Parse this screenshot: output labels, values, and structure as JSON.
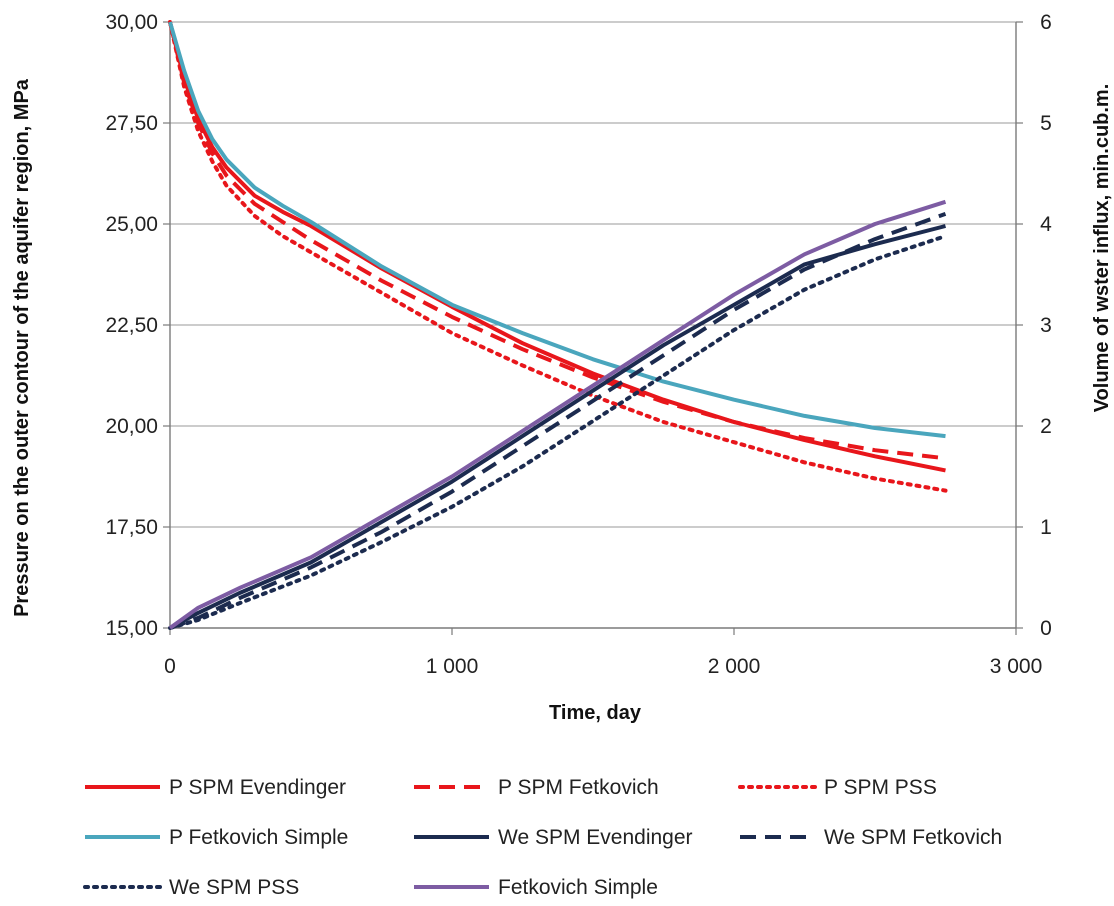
{
  "chart_data": {
    "type": "line",
    "title": "",
    "xlabel": "Time, day",
    "ylabel_left": "Pressure on the outer contour of the aquifer region, MPa",
    "ylabel_right": "Volume of wster influx,  min.cub.m.",
    "xlim": [
      0,
      3000
    ],
    "ylim_left": [
      15,
      30
    ],
    "ylim_right": [
      0,
      6
    ],
    "x_ticks": [
      "0",
      "1 000",
      "2 000",
      "3 000"
    ],
    "y_left_ticks": [
      "15,00",
      "17,50",
      "20,00",
      "22,50",
      "25,00",
      "27,50",
      "30,00"
    ],
    "y_right_ticks": [
      "0",
      "1",
      "2",
      "3",
      "4",
      "5",
      "6"
    ],
    "grid": "horizontal",
    "legend_position": "bottom",
    "series": [
      {
        "name": "P SPM Evendinger",
        "axis": "left",
        "color": "#e8161b",
        "dash": "solid",
        "x": [
          0,
          50,
          100,
          150,
          200,
          300,
          400,
          500,
          750,
          1000,
          1250,
          1500,
          1750,
          2000,
          2250,
          2500,
          2750
        ],
        "y": [
          30.0,
          28.6,
          27.6,
          26.9,
          26.4,
          25.7,
          25.3,
          24.95,
          23.9,
          22.95,
          22.05,
          21.3,
          20.65,
          20.1,
          19.65,
          19.25,
          18.9
        ]
      },
      {
        "name": "P SPM Fetkovich",
        "axis": "left",
        "color": "#e8161b",
        "dash": "dashed",
        "x": [
          0,
          50,
          100,
          150,
          200,
          300,
          400,
          500,
          750,
          1000,
          1250,
          1500,
          1750,
          2000,
          2250,
          2500,
          2750
        ],
        "y": [
          30.0,
          28.5,
          27.5,
          26.75,
          26.2,
          25.5,
          25.05,
          24.6,
          23.6,
          22.7,
          21.9,
          21.2,
          20.6,
          20.1,
          19.7,
          19.4,
          19.2
        ]
      },
      {
        "name": "P SPM PSS",
        "axis": "left",
        "color": "#e8161b",
        "dash": "dotted",
        "x": [
          0,
          50,
          100,
          150,
          200,
          300,
          400,
          500,
          750,
          1000,
          1250,
          1500,
          1750,
          2000,
          2250,
          2500,
          2750
        ],
        "y": [
          30.0,
          28.4,
          27.3,
          26.55,
          25.95,
          25.2,
          24.7,
          24.3,
          23.3,
          22.3,
          21.5,
          20.75,
          20.1,
          19.6,
          19.1,
          18.7,
          18.4
        ]
      },
      {
        "name": "P Fetkovich Simple",
        "axis": "left",
        "color": "#4aa6bd",
        "dash": "solid",
        "x": [
          0,
          50,
          100,
          150,
          200,
          300,
          400,
          500,
          750,
          1000,
          1250,
          1500,
          1750,
          2000,
          2250,
          2500,
          2750
        ],
        "y": [
          30.0,
          28.8,
          27.8,
          27.1,
          26.6,
          25.9,
          25.45,
          25.05,
          23.95,
          23.0,
          22.3,
          21.65,
          21.1,
          20.65,
          20.25,
          19.95,
          19.75
        ]
      },
      {
        "name": "We SPM Evendinger",
        "axis": "right",
        "color": "#1c2b4f",
        "dash": "solid",
        "x": [
          0,
          100,
          250,
          500,
          750,
          1000,
          1250,
          1500,
          1750,
          2000,
          2250,
          2500,
          2750
        ],
        "y": [
          0.0,
          0.15,
          0.35,
          0.65,
          1.05,
          1.45,
          1.9,
          2.35,
          2.8,
          3.2,
          3.6,
          3.8,
          3.98
        ]
      },
      {
        "name": "We SPM Fetkovich",
        "axis": "right",
        "color": "#1c2b4f",
        "dash": "dashed",
        "x": [
          0,
          100,
          250,
          500,
          750,
          1000,
          1250,
          1500,
          1750,
          2000,
          2250,
          2500,
          2750
        ],
        "y": [
          0.0,
          0.1,
          0.3,
          0.6,
          0.95,
          1.35,
          1.8,
          2.25,
          2.7,
          3.15,
          3.55,
          3.85,
          4.1
        ]
      },
      {
        "name": "We SPM PSS",
        "axis": "right",
        "color": "#1c2b4f",
        "dash": "dotted",
        "x": [
          0,
          100,
          250,
          500,
          750,
          1000,
          1250,
          1500,
          1750,
          2000,
          2250,
          2500,
          2750
        ],
        "y": [
          0.0,
          0.08,
          0.25,
          0.52,
          0.85,
          1.2,
          1.6,
          2.05,
          2.5,
          2.95,
          3.35,
          3.65,
          3.88
        ]
      },
      {
        "name": "Fetkovich Simple",
        "axis": "right",
        "color": "#7d5ca3",
        "dash": "solid",
        "x": [
          0,
          100,
          250,
          500,
          750,
          1000,
          1250,
          1500,
          1750,
          2000,
          2250,
          2500,
          2750
        ],
        "y": [
          0.0,
          0.2,
          0.4,
          0.7,
          1.1,
          1.5,
          1.95,
          2.4,
          2.85,
          3.3,
          3.7,
          4.0,
          4.22
        ]
      }
    ]
  }
}
